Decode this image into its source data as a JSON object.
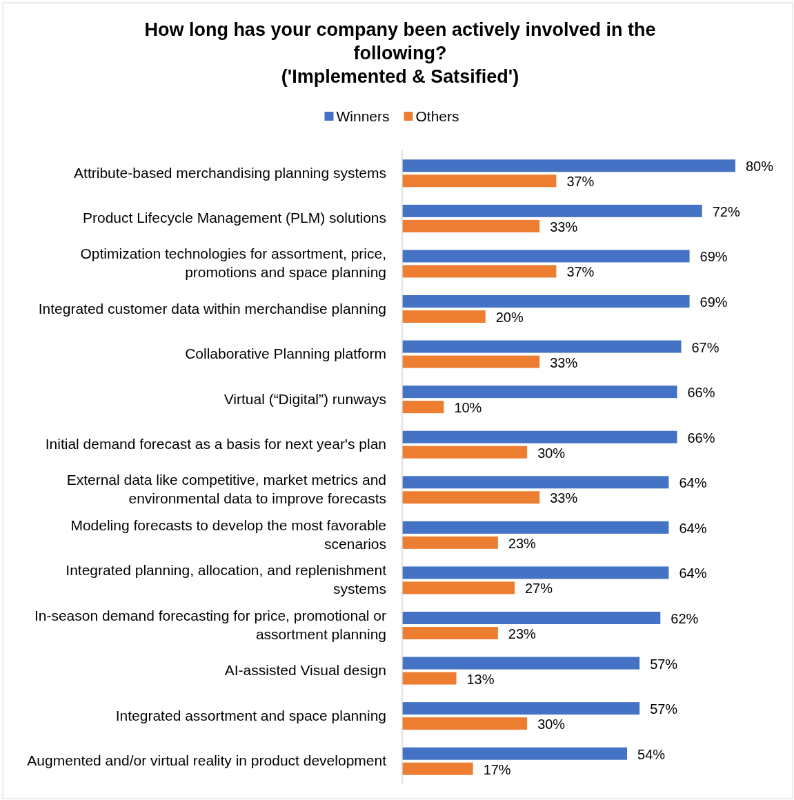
{
  "chart_data": {
    "type": "bar",
    "orientation": "horizontal",
    "title": "How long has your company been actively involved in the following?\n('Implemented & Satsified')",
    "legend": "top",
    "categories": [
      "Attribute-based merchandising planning systems",
      "Product Lifecycle Management (PLM) solutions",
      "Optimization technologies for assortment, price, promotions and space planning",
      "Integrated customer data within merchandise planning",
      "Collaborative Planning platform",
      "Virtual (“Digital”) runways",
      "Initial demand forecast as a basis for next year's plan",
      "External data like competitive, market metrics and environmental data to improve forecasts",
      "Modeling forecasts to develop the most favorable scenarios",
      "Integrated planning, allocation, and replenishment systems",
      "In-season demand forecasting for price, promotional or assortment planning",
      "AI-assisted Visual design",
      "Integrated assortment and space planning",
      "Augmented and/or virtual reality in product development"
    ],
    "series": [
      {
        "name": "Winners",
        "color": "#4472c4",
        "values": [
          80,
          72,
          69,
          69,
          67,
          66,
          66,
          64,
          64,
          64,
          62,
          57,
          57,
          54
        ],
        "value_labels": [
          "80%",
          "72%",
          "69%",
          "69%",
          "67%",
          "66%",
          "66%",
          "64%",
          "64%",
          "64%",
          "62%",
          "57%",
          "57%",
          "54%"
        ]
      },
      {
        "name": "Others",
        "color": "#ed7d31",
        "values": [
          37,
          33,
          37,
          20,
          33,
          10,
          30,
          33,
          23,
          27,
          23,
          13,
          30,
          17
        ],
        "value_labels": [
          "37%",
          "33%",
          "37%",
          "20%",
          "33%",
          "10%",
          "30%",
          "33%",
          "23%",
          "27%",
          "23%",
          "13%",
          "30%",
          "17%"
        ]
      }
    ]
  }
}
